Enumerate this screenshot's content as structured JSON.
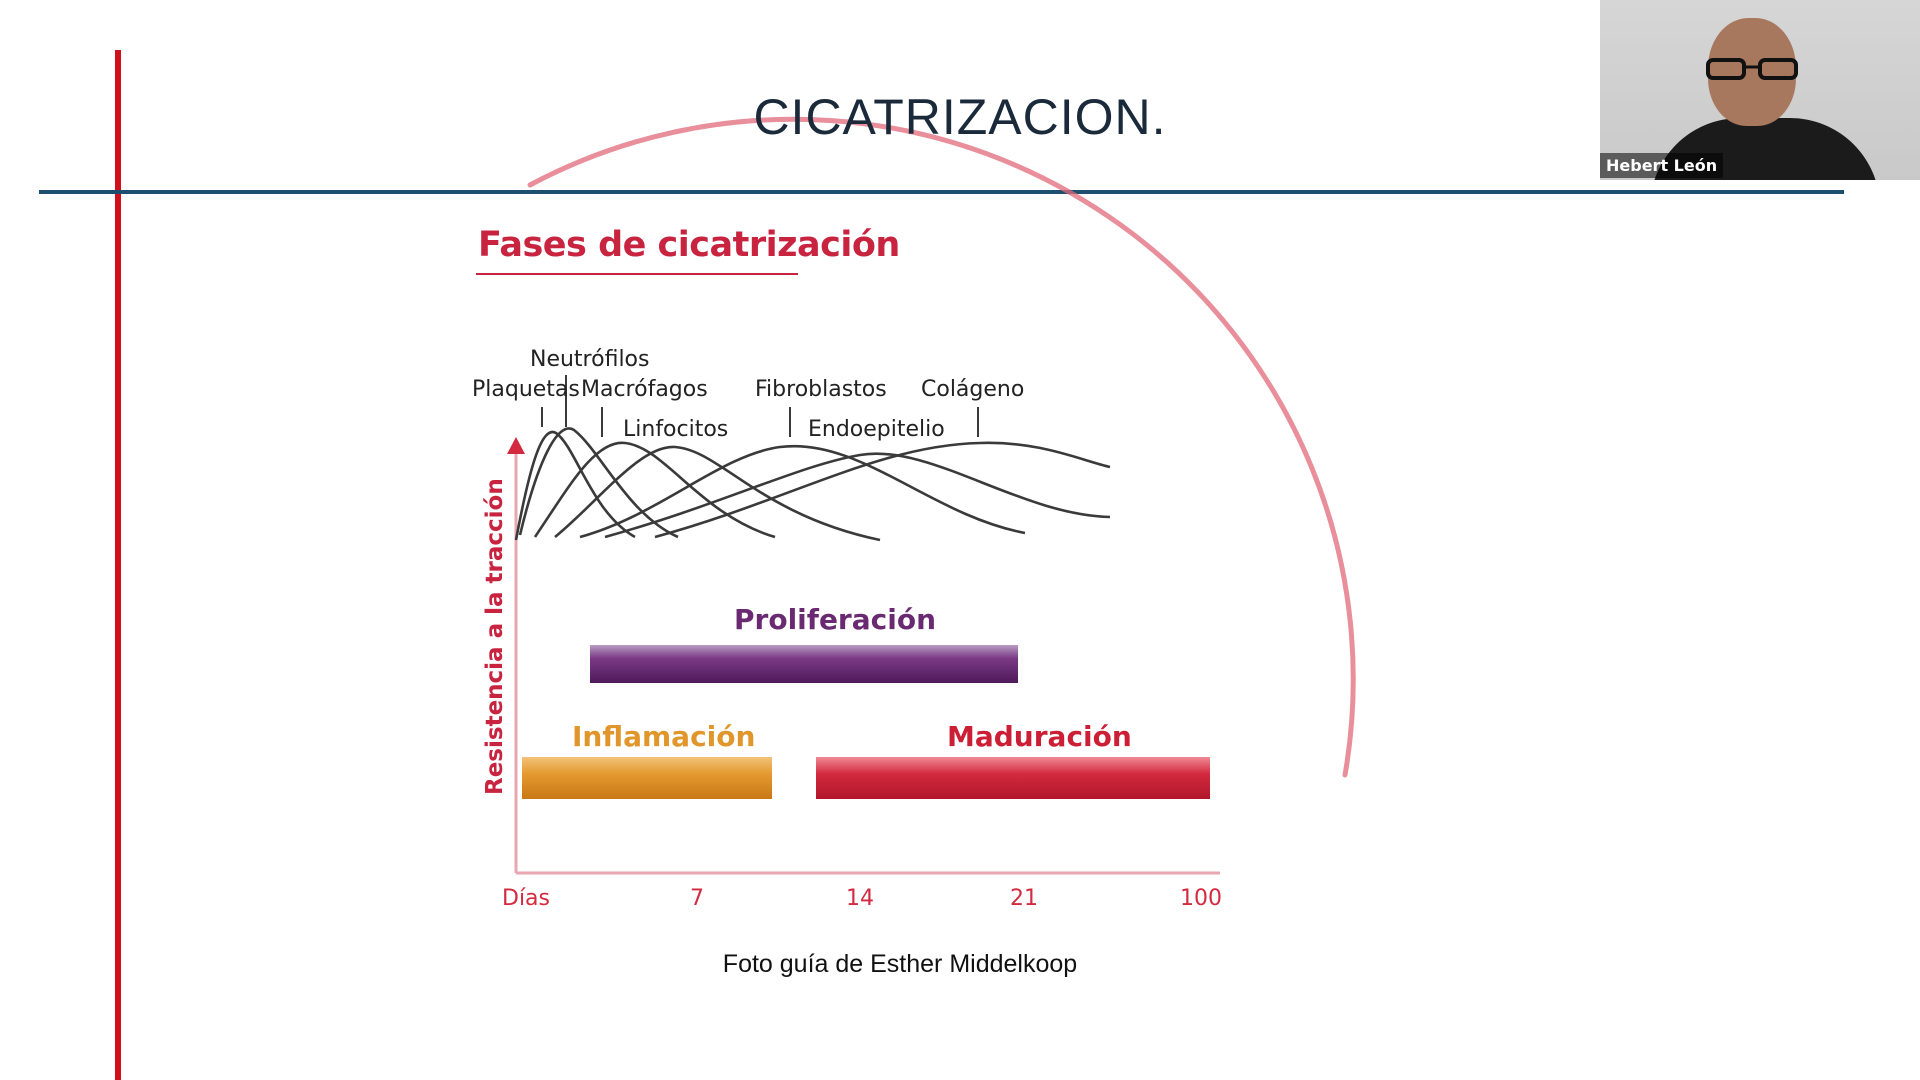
{
  "slide": {
    "title": "CICATRIZACION.",
    "caption": "Foto guía de Esther Middelkoop",
    "colors": {
      "accent_red": "#d0101b",
      "divider_blue": "#1d4f6e"
    }
  },
  "figure": {
    "title": "Fases de cicatrización",
    "y_axis_label": "Resistencia a la tracción",
    "x_axis_ticks": [
      "Días",
      "7",
      "14",
      "21",
      "100"
    ],
    "cell_labels": [
      "Neutrófilos",
      "Plaquetas",
      "Macrófagos",
      "Linfocitos",
      "Fibroblastos",
      "Endoepitelio",
      "Colágeno"
    ],
    "phases": [
      {
        "name": "Proliferación",
        "color": "#6a2a72"
      },
      {
        "name": "Inflamación",
        "color": "#e0962a"
      },
      {
        "name": "Maduración",
        "color": "#cc1e35"
      }
    ]
  },
  "webcam": {
    "participant_name": "Hebert León"
  }
}
